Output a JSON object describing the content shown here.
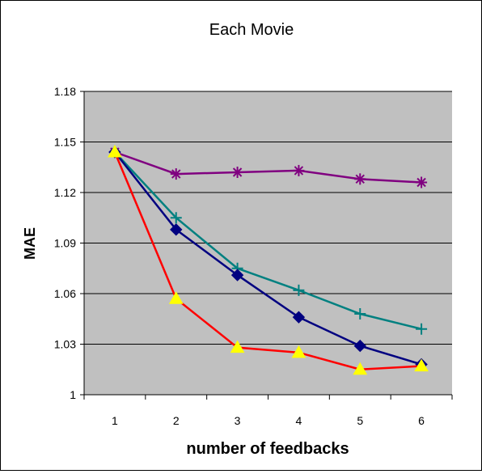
{
  "chart_data": {
    "type": "line",
    "title": "Each Movie",
    "xlabel": "number of feedbacks",
    "ylabel": "MAE",
    "categories": [
      "1",
      "2",
      "3",
      "4",
      "5",
      "6"
    ],
    "y_ticks": [
      "1",
      "1.03",
      "1.06",
      "1.09",
      "1.12",
      "1.15",
      "1.18"
    ],
    "ylim": [
      1,
      1.18
    ],
    "grid": true,
    "legend": "none",
    "series": [
      {
        "values": [
          1.144,
          1.131,
          1.132,
          1.133,
          1.128,
          1.126
        ],
        "color": "#800080",
        "marker": "asterisk"
      },
      {
        "values": [
          1.144,
          1.105,
          1.075,
          1.062,
          1.048,
          1.039
        ],
        "color": "#008080",
        "marker": "plus"
      },
      {
        "values": [
          1.144,
          1.098,
          1.071,
          1.046,
          1.029,
          1.018
        ],
        "color": "#000080",
        "marker": "diamond"
      },
      {
        "values": [
          1.144,
          1.057,
          1.028,
          1.025,
          1.015,
          1.017
        ],
        "color": "#ff0000",
        "marker": "triangle",
        "marker_color": "#ffff00"
      }
    ]
  }
}
